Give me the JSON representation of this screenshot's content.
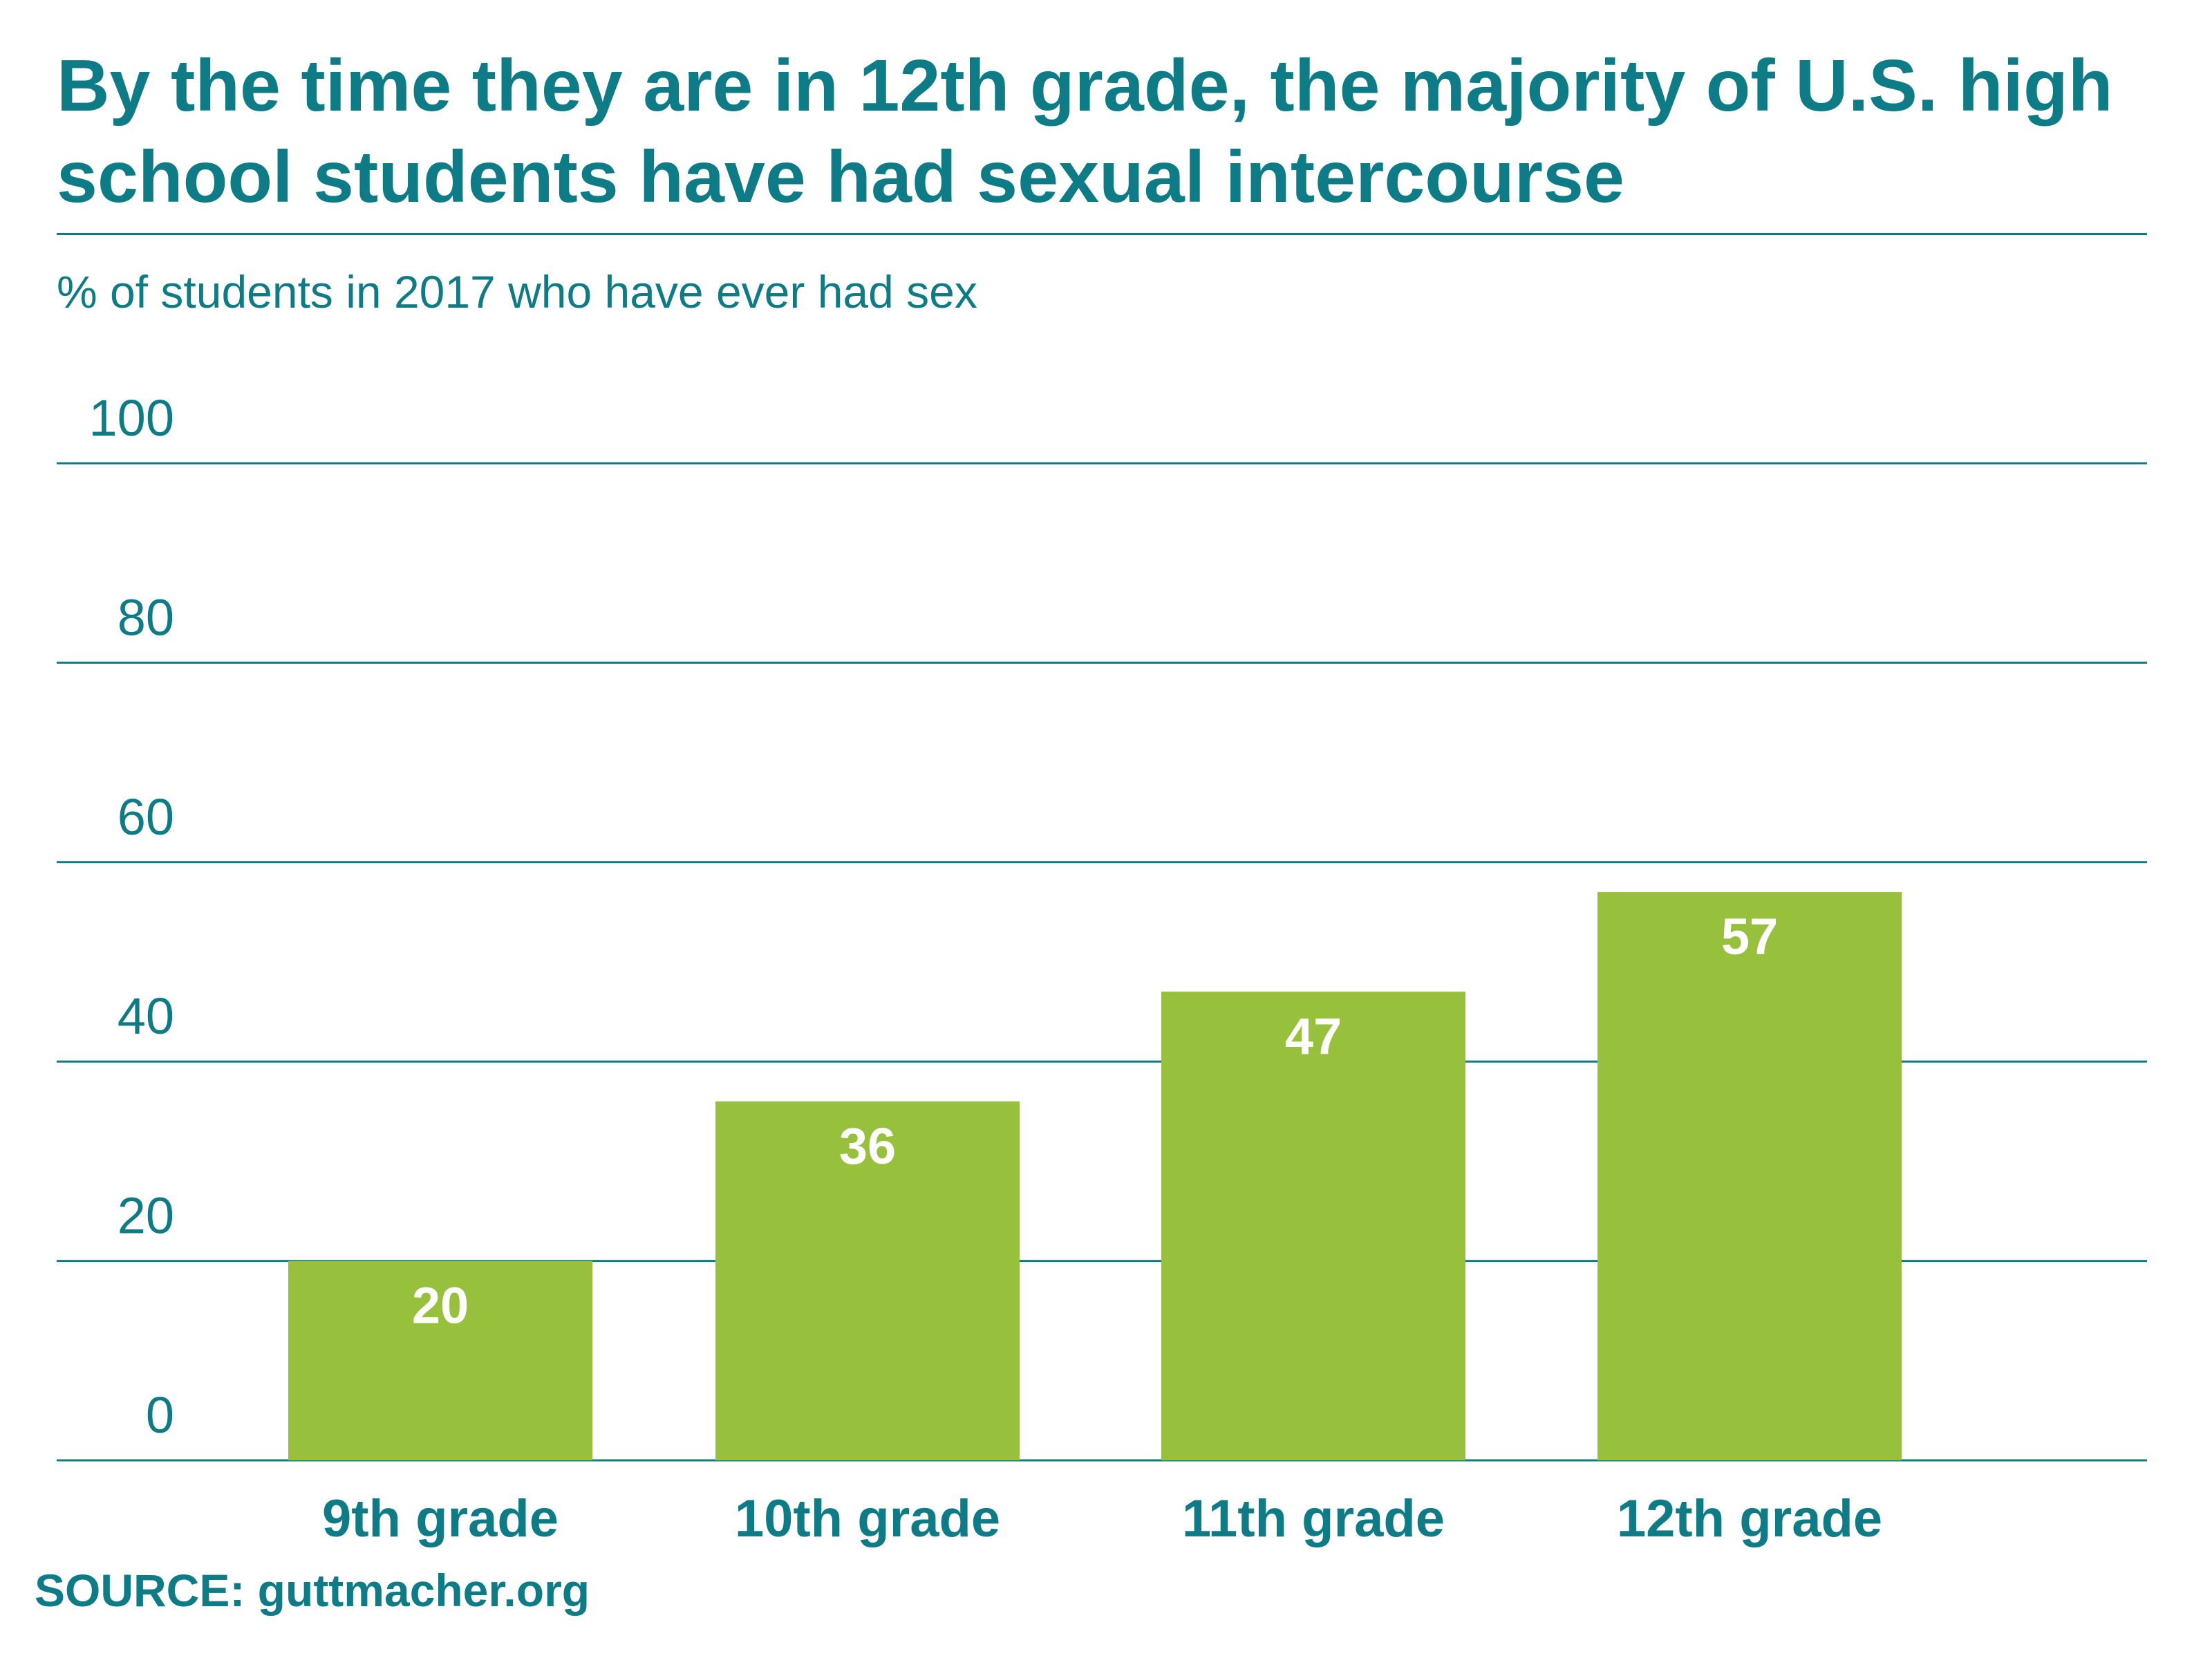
{
  "title": "By the time they are in 12th grade, the majority of U.S. high school students have had sexual intercourse",
  "subtitle": "% of students in 2017 who have ever had sex",
  "source": "SOURCE: guttmacher.org",
  "colors": {
    "teal": "#0e7c86",
    "bar": "#97c03d",
    "bar_label": "#ffffff"
  },
  "chart_data": {
    "type": "bar",
    "title": "By the time they are in 12th grade, the majority of U.S. high school students have had sexual intercourse",
    "ylabel": "% of students in 2017 who have ever had sex",
    "xlabel": "",
    "categories": [
      "9th grade",
      "10th grade",
      "11th grade",
      "12th grade"
    ],
    "values": [
      20,
      36,
      47,
      57
    ],
    "ylim": [
      0,
      100
    ],
    "yticks": [
      0,
      20,
      40,
      60,
      80,
      100
    ],
    "grid": true,
    "legend": "none",
    "data_labels": true
  }
}
